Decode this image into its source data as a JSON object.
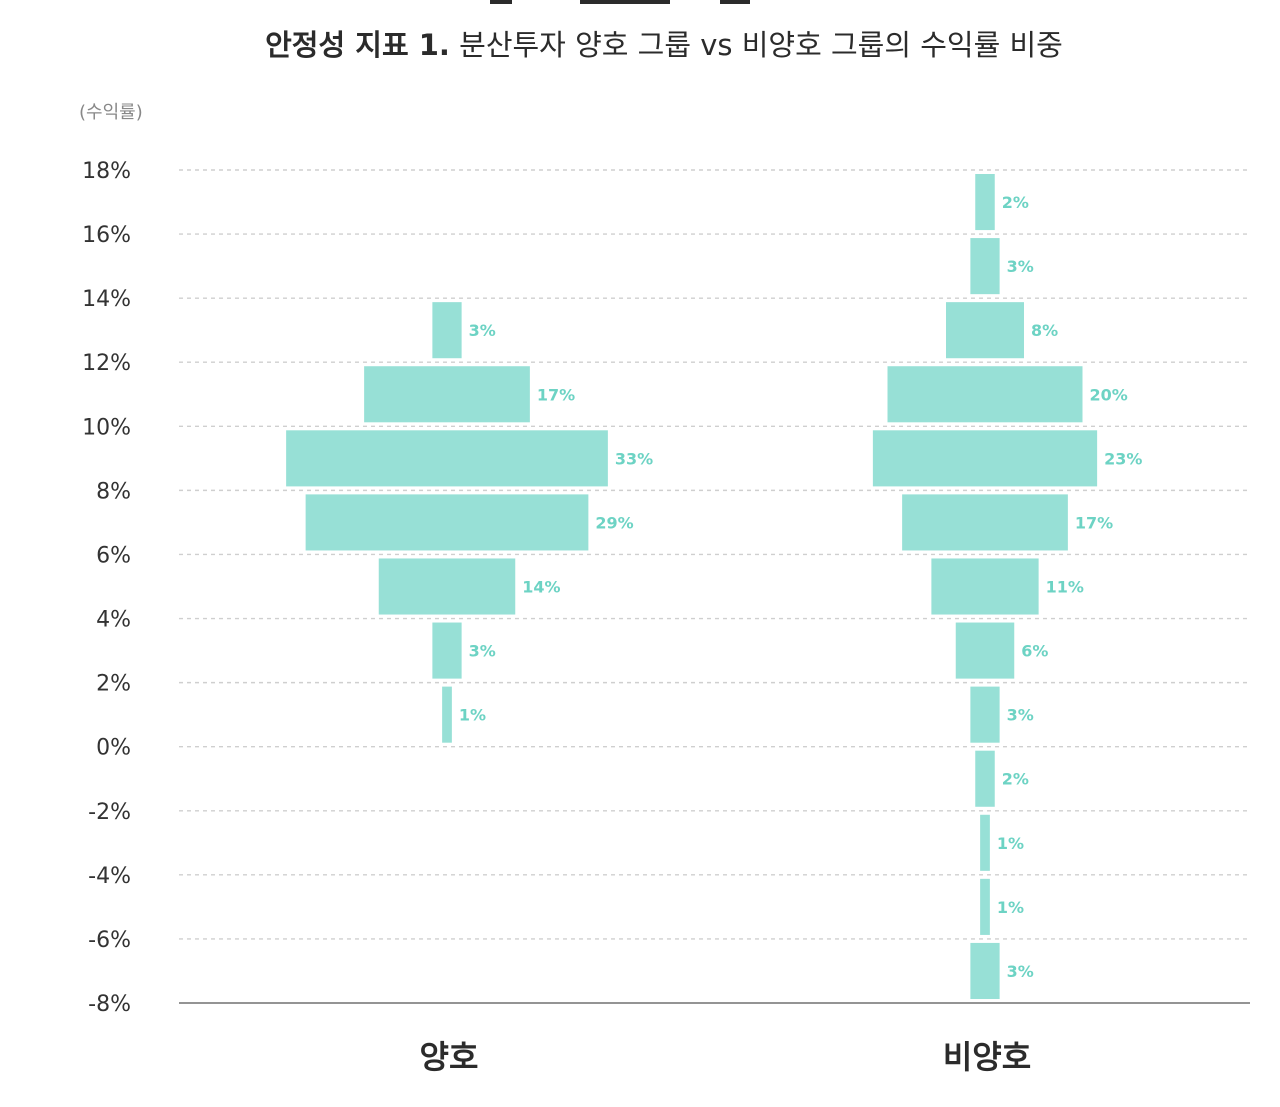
{
  "title": {
    "bold": "안정성 지표 1.",
    "normal": "분산투자 양호 그룹 vs 비양호 그룹의 수익률 비중"
  },
  "chart_data": {
    "type": "bar",
    "orientation": "horizontal-population-pyramid",
    "ylabel": "(수익률)",
    "y_ticks": [
      "18%",
      "16%",
      "14%",
      "12%",
      "10%",
      "8%",
      "6%",
      "4%",
      "2%",
      "0%",
      "-2%",
      "-4%",
      "-6%",
      "-8%"
    ],
    "ylim": [
      -8,
      18
    ],
    "grid": true,
    "bar_color": "#97e0d6",
    "label_color": "#6dd3c4",
    "series": [
      {
        "name": "양호",
        "bins": [
          {
            "range": [
              12,
              14
            ],
            "value": 3,
            "label": "3%"
          },
          {
            "range": [
              10,
              12
            ],
            "value": 17,
            "label": "17%"
          },
          {
            "range": [
              8,
              10
            ],
            "value": 33,
            "label": "33%"
          },
          {
            "range": [
              6,
              8
            ],
            "value": 29,
            "label": "29%"
          },
          {
            "range": [
              4,
              6
            ],
            "value": 14,
            "label": "14%"
          },
          {
            "range": [
              2,
              4
            ],
            "value": 3,
            "label": "3%"
          },
          {
            "range": [
              0,
              2
            ],
            "value": 1,
            "label": "1%"
          }
        ]
      },
      {
        "name": "비양호",
        "bins": [
          {
            "range": [
              16,
              18
            ],
            "value": 2,
            "label": "2%"
          },
          {
            "range": [
              14,
              16
            ],
            "value": 3,
            "label": "3%"
          },
          {
            "range": [
              12,
              14
            ],
            "value": 8,
            "label": "8%"
          },
          {
            "range": [
              10,
              12
            ],
            "value": 20,
            "label": "20%"
          },
          {
            "range": [
              8,
              10
            ],
            "value": 23,
            "label": "23%"
          },
          {
            "range": [
              6,
              8
            ],
            "value": 17,
            "label": "17%"
          },
          {
            "range": [
              4,
              6
            ],
            "value": 11,
            "label": "11%"
          },
          {
            "range": [
              2,
              4
            ],
            "value": 6,
            "label": "6%"
          },
          {
            "range": [
              0,
              2
            ],
            "value": 3,
            "label": "3%"
          },
          {
            "range": [
              -2,
              0
            ],
            "value": 2,
            "label": "2%"
          },
          {
            "range": [
              -4,
              -2
            ],
            "value": 1,
            "label": "1%"
          },
          {
            "range": [
              -6,
              -4
            ],
            "value": 1,
            "label": "1%"
          },
          {
            "range": [
              -8,
              -6
            ],
            "value": 3,
            "label": "3%"
          }
        ]
      }
    ]
  }
}
